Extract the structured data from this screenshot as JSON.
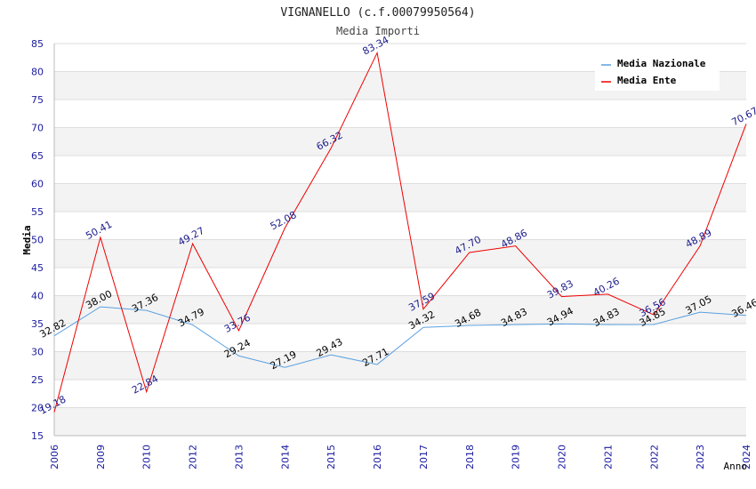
{
  "chart_data": {
    "type": "line",
    "title": "VIGNANELLO (c.f.00079950564)",
    "subtitle": "Media Importi",
    "xlabel": "Anno",
    "ylabel": "Media",
    "ylim": [
      15,
      85
    ],
    "yticks": [
      15,
      20,
      25,
      30,
      35,
      40,
      45,
      50,
      55,
      60,
      65,
      70,
      75,
      80,
      85
    ],
    "grid": true,
    "legend_position": "top-right",
    "categories": [
      "2006",
      "2009",
      "2010",
      "2012",
      "2013",
      "2014",
      "2015",
      "2016",
      "2017",
      "2018",
      "2019",
      "2020",
      "2021",
      "2022",
      "2023",
      "2024"
    ],
    "series": [
      {
        "name": "Media Nazionale",
        "color": "#5aa0e0",
        "label_color": "#000000",
        "values": [
          32.82,
          38.0,
          37.36,
          34.79,
          29.24,
          27.19,
          29.43,
          27.71,
          34.32,
          34.68,
          34.83,
          34.94,
          34.83,
          34.85,
          37.05,
          36.46
        ]
      },
      {
        "name": "Media Ente",
        "color": "#ee0000",
        "label_color": "#1a1a8c",
        "values": [
          19.18,
          50.41,
          22.84,
          49.27,
          33.76,
          52.08,
          66.32,
          83.34,
          37.59,
          47.7,
          48.86,
          39.83,
          40.26,
          36.56,
          48.89,
          70.67
        ]
      }
    ]
  }
}
